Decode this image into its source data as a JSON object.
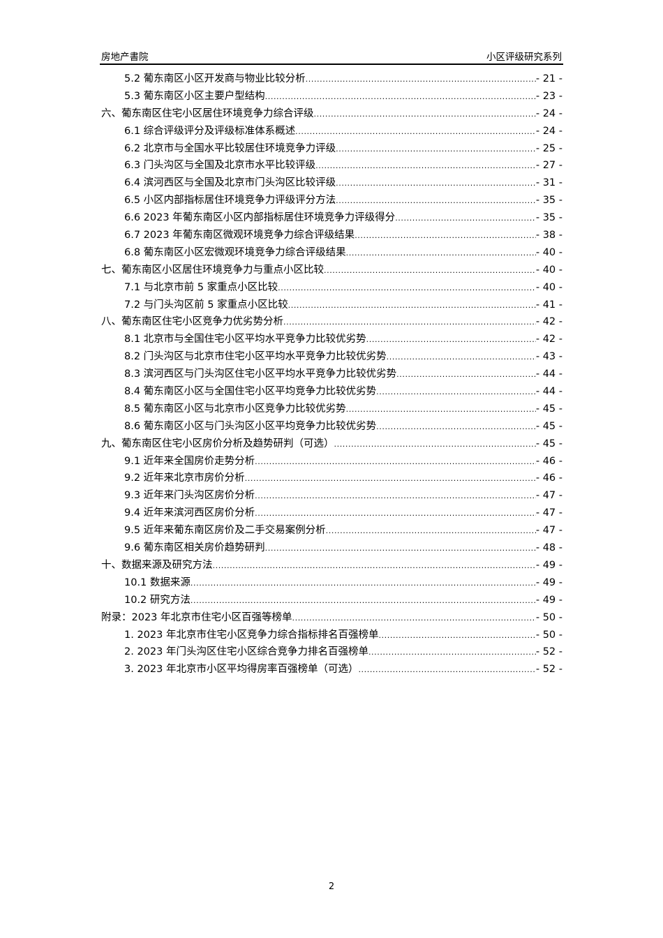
{
  "header": {
    "left": "房地产書院",
    "right": "小区评级研究系列"
  },
  "toc": [
    {
      "level": 2,
      "title": "5.2 葡东南区小区开发商与物业比较分析",
      "page": "- 21 -"
    },
    {
      "level": 2,
      "title": "5.3 葡东南区小区主要户型结构",
      "page": "- 23 -"
    },
    {
      "level": 1,
      "title": "六、葡东南区住宅小区居住环境竞争力综合评级",
      "page": "- 24 -"
    },
    {
      "level": 2,
      "title": "6.1 综合评级评分及评级标准体系概述",
      "page": "- 24 -"
    },
    {
      "level": 2,
      "title": "6.2 北京市与全国水平比较居住环境竞争力评级",
      "page": "- 25 -"
    },
    {
      "level": 2,
      "title": "6.3 门头沟区与全国及北京市水平比较评级",
      "page": "- 27 -"
    },
    {
      "level": 2,
      "title": "6.4 滨河西区与全国及北京市门头沟区比较评级",
      "page": "- 31 -"
    },
    {
      "level": 2,
      "title": "6.5 小区内部指标居住环境竞争力评级评分方法",
      "page": "- 35 -"
    },
    {
      "level": 2,
      "title": "6.6 2023 年葡东南区小区内部指标居住环境竞争力评级得分",
      "page": "- 35 -"
    },
    {
      "level": 2,
      "title": "6.7 2023 年葡东南区微观环境竞争力综合评级结果",
      "page": "- 38 -"
    },
    {
      "level": 2,
      "title": "6.8 葡东南区小区宏微观环境竞争力综合评级结果",
      "page": "- 40 -"
    },
    {
      "level": 1,
      "title": "七、葡东南区小区居住环境竞争力与重点小区比较",
      "page": "- 40 -"
    },
    {
      "level": 2,
      "title": "7.1 与北京市前 5 家重点小区比较",
      "page": "- 40 -"
    },
    {
      "level": 2,
      "title": "7.2 与门头沟区前 5 家重点小区比较",
      "page": "- 41 -"
    },
    {
      "level": 1,
      "title": "八、葡东南区住宅小区竞争力优劣势分析",
      "page": "- 42 -"
    },
    {
      "level": 2,
      "title": "8.1 北京市与全国住宅小区平均水平竞争力比较优劣势",
      "page": "- 42 -"
    },
    {
      "level": 2,
      "title": "8.2 门头沟区与北京市住宅小区平均水平竞争力比较优劣势",
      "page": "- 43 -"
    },
    {
      "level": 2,
      "title": "8.3 滨河西区与门头沟区住宅小区平均水平竞争力比较优劣势",
      "page": "- 44 -"
    },
    {
      "level": 2,
      "title": "8.4 葡东南区小区与全国住宅小区平均竞争力比较优劣势",
      "page": "- 44 -"
    },
    {
      "level": 2,
      "title": "8.5 葡东南区小区与北京市小区竞争力比较优劣势",
      "page": "- 45 -"
    },
    {
      "level": 2,
      "title": "8.6 葡东南区小区与门头沟区小区平均竞争力比较优劣势",
      "page": "- 45 -"
    },
    {
      "level": 1,
      "title": "九、葡东南区住宅小区房价分析及趋势研判（可选）",
      "page": "- 45 -"
    },
    {
      "level": 2,
      "title": "9.1 近年来全国房价走势分析",
      "page": "- 46 -"
    },
    {
      "level": 2,
      "title": "9.2 近年来北京市房价分析",
      "page": "- 46 -"
    },
    {
      "level": 2,
      "title": "9.3 近年来门头沟区房价分析",
      "page": "- 47 -"
    },
    {
      "level": 2,
      "title": "9.4 近年来滨河西区房价分析",
      "page": "- 47 -"
    },
    {
      "level": 2,
      "title": "9.5 近年来葡东南区房价及二手交易案例分析",
      "page": "- 47 -"
    },
    {
      "level": 2,
      "title": "9.6 葡东南区相关房价趋势研判",
      "page": "- 48 -"
    },
    {
      "level": 1,
      "title": "十、数据来源及研究方法",
      "page": "- 49 -"
    },
    {
      "level": 2,
      "title": "10.1 数据来源",
      "page": "- 49 -"
    },
    {
      "level": 2,
      "title": "10.2 研究方法",
      "page": "- 49 -"
    },
    {
      "level": 1,
      "title": "附录：2023 年北京市住宅小区百强等榜单",
      "page": "- 50 -"
    },
    {
      "level": 2,
      "title": "1. 2023 年北京市住宅小区竞争力综合指标排名百强榜单",
      "page": "- 50 -"
    },
    {
      "level": 2,
      "title": "2. 2023 年门头沟区住宅小区综合竞争力排名百强榜单",
      "page": "- 52 -"
    },
    {
      "level": 2,
      "title": "3. 2023 年北京市小区平均得房率百强榜单（可选）",
      "page": "- 52 -"
    }
  ],
  "footer": {
    "page_number": "2"
  }
}
